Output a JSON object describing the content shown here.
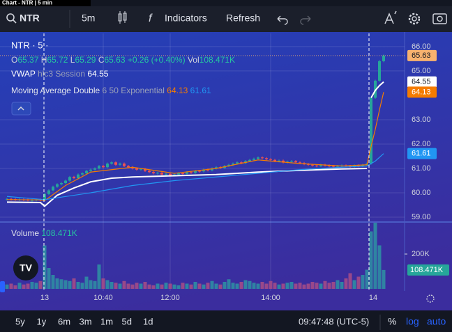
{
  "window_title": "Chart - NTR | 5 min",
  "toolbar": {
    "symbol": "NTR",
    "interval": "5m",
    "indicators": "Indicators",
    "refresh": "Refresh"
  },
  "legend": {
    "symbol": "NTR · 5 ·",
    "ohlc": [
      {
        "key": "O",
        "value": "65.37"
      },
      {
        "key": "H",
        "value": "65.72"
      },
      {
        "key": "L",
        "value": "65.29"
      },
      {
        "key": "C",
        "value": "65.63"
      }
    ],
    "change": "+0.26 (+0.40%)",
    "vol_key": "Vol",
    "vol": "108.471K",
    "vwap": {
      "name": "VWAP",
      "params": "hlc3 Session",
      "value": "64.55"
    },
    "ma": {
      "name": "Moving Average Double",
      "params": "6 50 Exponential",
      "fast": "64.13",
      "slow": "61.61"
    }
  },
  "chart_data": {
    "type": "candlestick",
    "up_color": "#26a69a",
    "down_color": "#ef5350",
    "closes": [
      59.75,
      59.74,
      59.72,
      59.73,
      59.72,
      59.7,
      59.7,
      59.72,
      59.7,
      59.95,
      60.1,
      60.25,
      60.35,
      60.4,
      60.5,
      60.65,
      60.6,
      60.75,
      60.8,
      60.9,
      60.95,
      61.0,
      61.1,
      61.05,
      61.2,
      61.25,
      61.15,
      61.2,
      61.1,
      61.05,
      61.0,
      60.95,
      60.98,
      60.9,
      60.85,
      60.8,
      60.82,
      60.75,
      60.78,
      60.72,
      60.75,
      60.8,
      60.78,
      60.85,
      60.82,
      60.9,
      60.88,
      60.95,
      60.92,
      61.0,
      61.05,
      61.02,
      61.1,
      61.15,
      61.2,
      61.25,
      61.22,
      61.3,
      61.35,
      61.4,
      61.45,
      61.42,
      61.38,
      61.35,
      61.3,
      61.32,
      61.25,
      61.28,
      61.3,
      61.25,
      61.22,
      61.18,
      61.15,
      61.12,
      61.1,
      61.15,
      61.12,
      61.1,
      61.08,
      61.1,
      61.12,
      61.1,
      61.08,
      61.12,
      61.1,
      61.15,
      61.2,
      63.9,
      64.6,
      65.4,
      65.63
    ],
    "lines": [
      {
        "color": "#ffffff",
        "x": [
          0,
          8,
          9,
          12,
          16,
          20,
          25,
          30,
          40,
          50,
          60,
          70,
          80,
          86,
          null,
          87,
          88,
          89,
          90
        ],
        "values": [
          59.62,
          59.6,
          59.45,
          59.9,
          60.2,
          60.45,
          60.6,
          60.65,
          60.7,
          60.75,
          60.85,
          60.92,
          60.98,
          61.0,
          null,
          63.9,
          64.2,
          64.4,
          64.55
        ]
      },
      {
        "color": "#f57c00",
        "x": [
          0,
          8,
          9,
          14,
          20,
          30,
          40,
          50,
          60,
          70,
          80,
          86,
          87,
          88,
          89,
          90
        ],
        "values": [
          59.72,
          59.71,
          59.68,
          60.3,
          60.85,
          61.05,
          60.8,
          61.0,
          61.35,
          61.2,
          61.1,
          61.15,
          61.9,
          62.6,
          63.4,
          64.13
        ]
      },
      {
        "color": "#2196f3",
        "x": [
          0,
          9,
          20,
          30,
          40,
          50,
          60,
          70,
          80,
          86,
          88,
          90
        ],
        "values": [
          59.85,
          59.72,
          60.0,
          60.3,
          60.5,
          60.65,
          60.8,
          60.95,
          61.05,
          61.1,
          61.3,
          61.61
        ]
      }
    ],
    "ylim": [
      58.83,
      66.54
    ],
    "yticks": [
      {
        "value": 59,
        "label": "59.00"
      },
      {
        "value": 60,
        "label": "60.00"
      },
      {
        "value": 61,
        "label": "61.00"
      },
      {
        "value": 62,
        "label": "62.00"
      },
      {
        "value": 63,
        "label": "63.00"
      },
      {
        "value": 65,
        "label": "65.00"
      },
      {
        "value": 66,
        "label": "66.00"
      }
    ],
    "price_tags": [
      {
        "value": 65.63,
        "label": "65.63",
        "color": "#f7b26f"
      },
      {
        "value": 64.55,
        "label": "64.55",
        "color": "#ffffff"
      },
      {
        "value": 64.13,
        "label": "64.13",
        "color": "#f57c00"
      },
      {
        "value": 61.61,
        "label": "61.61",
        "color": "#2196f3"
      }
    ],
    "volume": {
      "label": "Volume",
      "last_label": "108.471K",
      "up_color": "#2e93a3",
      "down_color": "#a94d86",
      "values": [
        25,
        30,
        20,
        35,
        25,
        30,
        40,
        35,
        45,
        250,
        120,
        80,
        60,
        55,
        50,
        45,
        60,
        40,
        35,
        70,
        50,
        45,
        140,
        60,
        50,
        40,
        35,
        30,
        45,
        30,
        25,
        35,
        30,
        40,
        25,
        20,
        30,
        25,
        35,
        30,
        25,
        20,
        35,
        30,
        25,
        40,
        30,
        25,
        35,
        45,
        30,
        25,
        40,
        55,
        35,
        30,
        40,
        50,
        45,
        35,
        30,
        40,
        30,
        45,
        35,
        25,
        30,
        35,
        40,
        30,
        35,
        25,
        30,
        40,
        35,
        30,
        45,
        35,
        40,
        50,
        40,
        60,
        90,
        50,
        70,
        80,
        110,
        330,
        380,
        250,
        108.471
      ],
      "ylim": [
        0,
        372
      ],
      "yticks": [
        {
          "value": 200,
          "label": "200K"
        }
      ],
      "tag_color": "#26a69a"
    },
    "x_labels": [
      "13",
      "10:40",
      "12:00",
      "14:00",
      "14"
    ]
  },
  "bottom": {
    "ranges": [
      "5y",
      "1y",
      "6m",
      "3m",
      "1m",
      "5d",
      "1d"
    ],
    "clock": "09:47:48 (UTC-5)",
    "percent": "%",
    "log": "log",
    "auto": "auto"
  }
}
